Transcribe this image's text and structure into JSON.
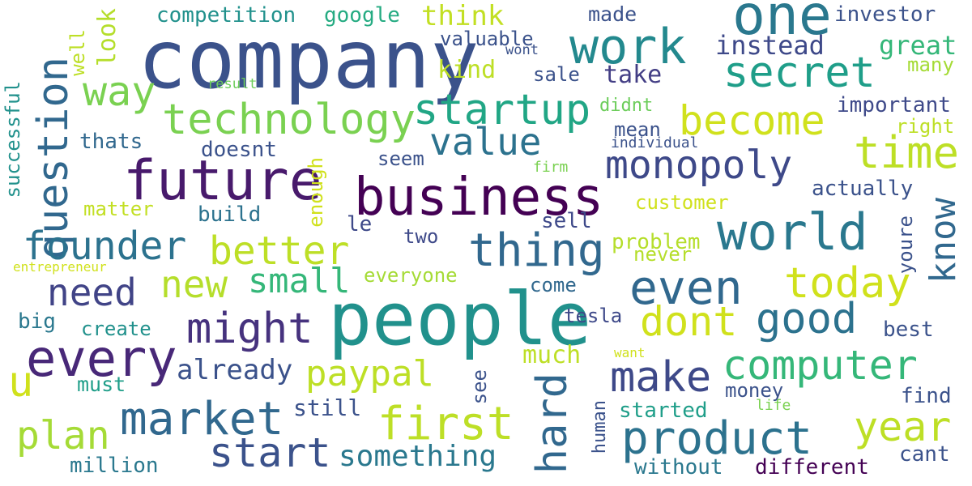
{
  "cloud": {
    "title": "word cloud",
    "words": [
      {
        "text": "company",
        "color": "#3b528b"
      },
      {
        "text": "people",
        "color": "#21918c"
      },
      {
        "text": "business",
        "color": "#440154"
      },
      {
        "text": "future",
        "color": "#481a6c"
      },
      {
        "text": "one",
        "color": "#2a788e"
      },
      {
        "text": "work",
        "color": "#23898e"
      },
      {
        "text": "world",
        "color": "#2a788e"
      },
      {
        "text": "even",
        "color": "#31688e"
      },
      {
        "text": "question",
        "color": "#31688e"
      },
      {
        "text": "technology",
        "color": "#7ad151"
      },
      {
        "text": "startup",
        "color": "#21a685"
      },
      {
        "text": "secret",
        "color": "#1f9e89"
      },
      {
        "text": "market",
        "color": "#31688e"
      },
      {
        "text": "every",
        "color": "#482878"
      },
      {
        "text": "product",
        "color": "#2c728e"
      },
      {
        "text": "monopoly",
        "color": "#3e4989"
      },
      {
        "text": "time",
        "color": "#bddf26"
      },
      {
        "text": "become",
        "color": "#d0e11c"
      },
      {
        "text": "thing",
        "color": "#31688e"
      },
      {
        "text": "founder",
        "color": "#2c728e"
      },
      {
        "text": "better",
        "color": "#bddf26"
      },
      {
        "text": "might",
        "color": "#46327e"
      },
      {
        "text": "make",
        "color": "#3e4989"
      },
      {
        "text": "computer",
        "color": "#35b779"
      },
      {
        "text": "first",
        "color": "#bddf26"
      },
      {
        "text": "hard",
        "color": "#31688e"
      },
      {
        "text": "year",
        "color": "#bddf26"
      },
      {
        "text": "today",
        "color": "#d0e11c"
      },
      {
        "text": "value",
        "color": "#2c728e"
      },
      {
        "text": "way",
        "color": "#7ad151"
      },
      {
        "text": "need",
        "color": "#414487"
      },
      {
        "text": "new",
        "color": "#b5de2b"
      },
      {
        "text": "small",
        "color": "#35b779"
      },
      {
        "text": "good",
        "color": "#2c728e"
      },
      {
        "text": "dont",
        "color": "#d0e11c"
      },
      {
        "text": "start",
        "color": "#3b528b"
      },
      {
        "text": "plan",
        "color": "#a5db36"
      },
      {
        "text": "paypal",
        "color": "#bddf26"
      },
      {
        "text": "know",
        "color": "#31688e"
      },
      {
        "text": "u",
        "color": "#d0e11c"
      },
      {
        "text": "competition",
        "color": "#21918c"
      },
      {
        "text": "google",
        "color": "#25ab82"
      },
      {
        "text": "think",
        "color": "#c2df23"
      },
      {
        "text": "made",
        "color": "#3b528b"
      },
      {
        "text": "investor",
        "color": "#3b528b"
      },
      {
        "text": "instead",
        "color": "#3e4989"
      },
      {
        "text": "great",
        "color": "#35b779"
      },
      {
        "text": "many",
        "color": "#a5db36"
      },
      {
        "text": "valuable",
        "color": "#3b528b"
      },
      {
        "text": "wont",
        "color": "#3b528b"
      },
      {
        "text": "kind",
        "color": "#bddf26"
      },
      {
        "text": "sale",
        "color": "#3b528b"
      },
      {
        "text": "take",
        "color": "#433e85"
      },
      {
        "text": "look",
        "color": "#b5de2b"
      },
      {
        "text": "well",
        "color": "#bddf26"
      },
      {
        "text": "result",
        "color": "#6ccd5a"
      },
      {
        "text": "successful",
        "color": "#21918c"
      },
      {
        "text": "thats",
        "color": "#31688e"
      },
      {
        "text": "doesnt",
        "color": "#3b528b"
      },
      {
        "text": "didnt",
        "color": "#6ccd5a"
      },
      {
        "text": "mean",
        "color": "#3b528b"
      },
      {
        "text": "individual",
        "color": "#3b528b"
      },
      {
        "text": "important",
        "color": "#3e4989"
      },
      {
        "text": "right",
        "color": "#bddf26"
      },
      {
        "text": "seem",
        "color": "#3b528b"
      },
      {
        "text": "firm",
        "color": "#7ad151"
      },
      {
        "text": "enough",
        "color": "#d0e11c"
      },
      {
        "text": "customer",
        "color": "#d0e11c"
      },
      {
        "text": "actually",
        "color": "#3b528b"
      },
      {
        "text": "matter",
        "color": "#c2df23"
      },
      {
        "text": "build",
        "color": "#2c728e"
      },
      {
        "text": "le",
        "color": "#3e4989"
      },
      {
        "text": "two",
        "color": "#3e4989"
      },
      {
        "text": "sell",
        "color": "#3e4989"
      },
      {
        "text": "problem",
        "color": "#b5de2b"
      },
      {
        "text": "never",
        "color": "#b5de2b"
      },
      {
        "text": "youre",
        "color": "#3b528b"
      },
      {
        "text": "entrepreneur",
        "color": "#d0e11c"
      },
      {
        "text": "everyone",
        "color": "#a5db36"
      },
      {
        "text": "come",
        "color": "#31688e"
      },
      {
        "text": "big",
        "color": "#2a788e"
      },
      {
        "text": "create",
        "color": "#21918c"
      },
      {
        "text": "tesla",
        "color": "#3e4989"
      },
      {
        "text": "best",
        "color": "#3b528b"
      },
      {
        "text": "much",
        "color": "#bddf26"
      },
      {
        "text": "already",
        "color": "#3b528b"
      },
      {
        "text": "want",
        "color": "#d0e11c"
      },
      {
        "text": "must",
        "color": "#1f9e89"
      },
      {
        "text": "see",
        "color": "#3b528b"
      },
      {
        "text": "money",
        "color": "#3b528b"
      },
      {
        "text": "life",
        "color": "#7ad151"
      },
      {
        "text": "find",
        "color": "#3b528b"
      },
      {
        "text": "still",
        "color": "#3b528b"
      },
      {
        "text": "human",
        "color": "#3b528b"
      },
      {
        "text": "started",
        "color": "#1f9e89"
      },
      {
        "text": "something",
        "color": "#2a788e"
      },
      {
        "text": "million",
        "color": "#2a788e"
      },
      {
        "text": "without",
        "color": "#2a788e"
      },
      {
        "text": "different",
        "color": "#440154"
      },
      {
        "text": "cant",
        "color": "#3b528b"
      }
    ]
  }
}
